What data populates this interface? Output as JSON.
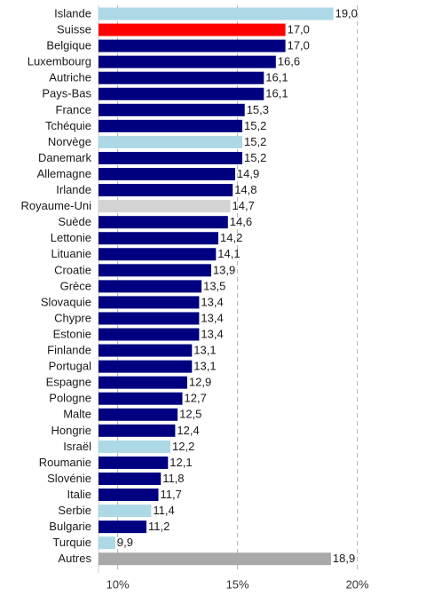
{
  "chart_data": {
    "type": "bar",
    "orientation": "horizontal",
    "title": "",
    "xlabel": "",
    "ylabel": "",
    "xlim": [
      9.2,
      20.5
    ],
    "grid": true,
    "legend": "none",
    "x_ticks": [
      10,
      15,
      20
    ],
    "x_tick_labels": [
      "10%",
      "15%",
      "20%"
    ],
    "colors": {
      "default": "#000080",
      "highlight": "#ff0000",
      "non_eu": "#add8e6",
      "uk": "#d3d3d3",
      "other": "#a9a9a9"
    },
    "categories": [
      "Islande",
      "Suisse",
      "Belgique",
      "Luxembourg",
      "Autriche",
      "Pays-Bas",
      "France",
      "Tchéquie",
      "Norvège",
      "Danemark",
      "Allemagne",
      "Irlande",
      "Royaume-Uni",
      "Suède",
      "Lettonie",
      "Lituanie",
      "Croatie",
      "Grèce",
      "Slovaquie",
      "Chypre",
      "Estonie",
      "Finlande",
      "Portugal",
      "Espagne",
      "Pologne",
      "Malte",
      "Hongrie",
      "Israël",
      "Roumanie",
      "Slovénie",
      "Italie",
      "Serbie",
      "Bulgarie",
      "Turquie",
      "Autres"
    ],
    "values": [
      19.0,
      17.0,
      17.0,
      16.6,
      16.1,
      16.1,
      15.3,
      15.2,
      15.2,
      15.2,
      14.9,
      14.8,
      14.7,
      14.6,
      14.2,
      14.1,
      13.9,
      13.5,
      13.4,
      13.4,
      13.4,
      13.1,
      13.1,
      12.9,
      12.7,
      12.5,
      12.4,
      12.2,
      12.1,
      11.8,
      11.7,
      11.4,
      11.2,
      9.9,
      18.9
    ],
    "value_labels": [
      "19,0",
      "17,0",
      "17,0",
      "16,6",
      "16,1",
      "16,1",
      "15,3",
      "15,2",
      "15,2",
      "15,2",
      "14,9",
      "14,8",
      "14,7",
      "14,6",
      "14,2",
      "14,1",
      "13,9",
      "13,5",
      "13,4",
      "13,4",
      "13,4",
      "13,1",
      "13,1",
      "12,9",
      "12,7",
      "12,5",
      "12,4",
      "12,2",
      "12,1",
      "11,8",
      "11,7",
      "11,4",
      "11,2",
      "9,9",
      "18,9"
    ],
    "bar_colors": [
      "non_eu",
      "highlight",
      "default",
      "default",
      "default",
      "default",
      "default",
      "default",
      "non_eu",
      "default",
      "default",
      "default",
      "uk",
      "default",
      "default",
      "default",
      "default",
      "default",
      "default",
      "default",
      "default",
      "default",
      "default",
      "default",
      "default",
      "default",
      "default",
      "non_eu",
      "default",
      "default",
      "default",
      "non_eu",
      "default",
      "non_eu",
      "other"
    ]
  }
}
